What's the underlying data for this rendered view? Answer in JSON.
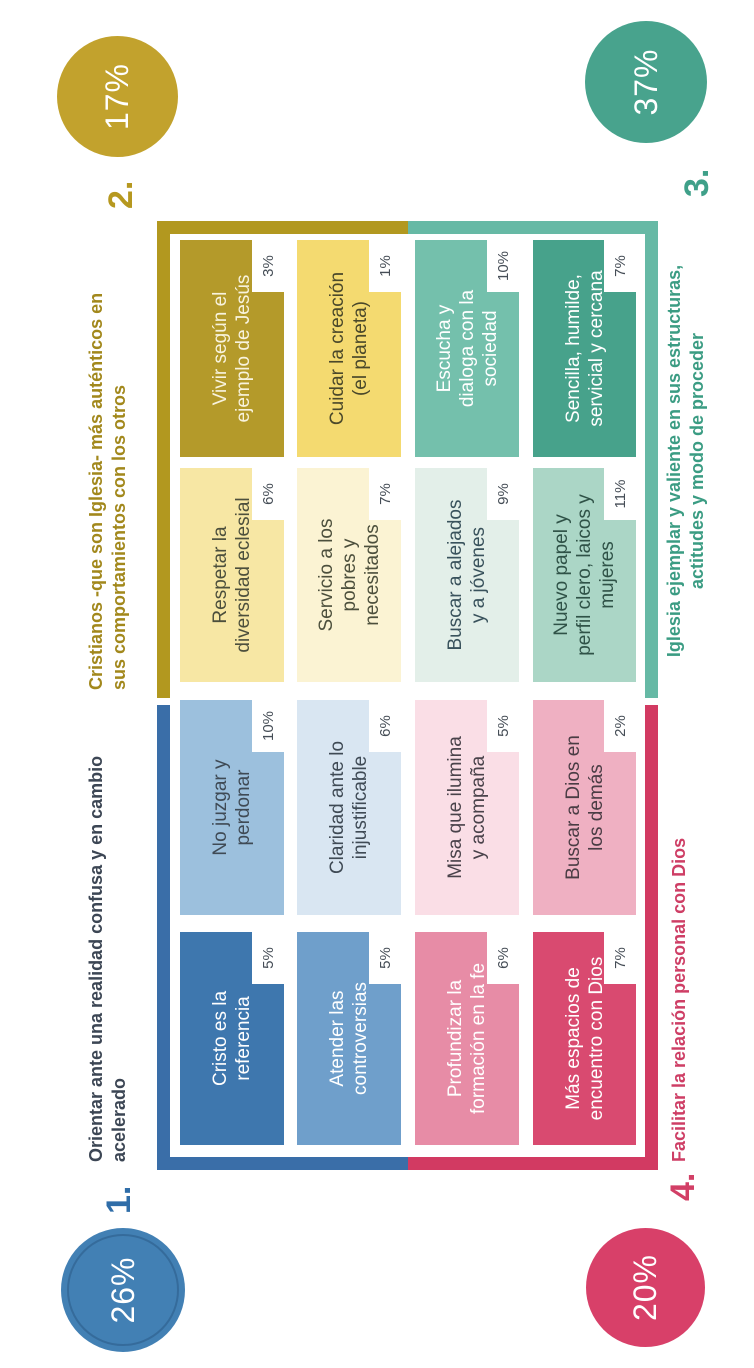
{
  "quadrants": [
    {
      "number": "1.",
      "percent": "26%",
      "title": "Orientar ante una realidad confusa y en cambio\nacelerado",
      "accent": "#2f6da8",
      "circle_color": "#4280b4",
      "title_color": "#3c4654"
    },
    {
      "number": "2.",
      "percent": "17%",
      "title": "Cristianos -que son Iglesia- más auténticos en\nsus comportamientos con los otros",
      "accent": "#b6981f",
      "circle_color": "#c2a22d",
      "title_color": "#a2881c"
    },
    {
      "number": "3.",
      "percent": "37%",
      "title": "Iglesia ejemplar y valiente en sus estructuras,\nactitudes y modo de proceder",
      "accent": "#3fa089",
      "circle_color": "#48a38d",
      "title_color": "#3b9c83"
    },
    {
      "number": "4.",
      "percent": "20%",
      "title": "Facilitar la relación personal con Dios",
      "accent": "#d23f66",
      "circle_color": "#d84069",
      "title_color": "#ce3e65"
    }
  ],
  "brackets": {
    "blue": "#3a6ea8",
    "crimson": "#d23a62",
    "gold": "#b2981f",
    "teal": "#66b9a5"
  },
  "notch": {
    "bg": "#ffffff",
    "fg": "#454d56"
  },
  "boxes": [
    {
      "row": 0,
      "col": 0,
      "label": "Cristo es la\nreferencia",
      "value": "5%",
      "bg": "#3e77ae",
      "fg": "#ffffff"
    },
    {
      "row": 0,
      "col": 1,
      "label": "No juzgar y\nperdonar",
      "value": "10%",
      "bg": "#9cc0dd",
      "fg": "#3f4a55"
    },
    {
      "row": 0,
      "col": 2,
      "label": "Respetar la\ndiversidad eclesial",
      "value": "6%",
      "bg": "#f7e7a4",
      "fg": "#4c4f3c"
    },
    {
      "row": 0,
      "col": 3,
      "label": "Vivir según el\nejemplo de Jesús",
      "value": "3%",
      "bg": "#b49a2a",
      "fg": "#f8f3dd"
    },
    {
      "row": 1,
      "col": 0,
      "label": "Atender las\ncontroversias",
      "value": "5%",
      "bg": "#6f9fcb",
      "fg": "#ffffff"
    },
    {
      "row": 1,
      "col": 1,
      "label": "Claridad ante lo\ninjustificable",
      "value": "6%",
      "bg": "#d9e6f2",
      "fg": "#3f4a55"
    },
    {
      "row": 1,
      "col": 2,
      "label": "Servicio a los\npobres y\nnecesitados",
      "value": "7%",
      "bg": "#fbf3d3",
      "fg": "#4c4f3c"
    },
    {
      "row": 1,
      "col": 3,
      "label": "Cuidar la creación\n(el planeta)",
      "value": "1%",
      "bg": "#f4da70",
      "fg": "#4a482a"
    },
    {
      "row": 2,
      "col": 0,
      "label": "Profundizar la\nformación en la fe",
      "value": "6%",
      "bg": "#e78ca6",
      "fg": "#ffffff"
    },
    {
      "row": 2,
      "col": 1,
      "label": "Misa que ilumina\ny acompaña",
      "value": "5%",
      "bg": "#fadee6",
      "fg": "#49424a"
    },
    {
      "row": 2,
      "col": 2,
      "label": "Buscar a alejados\ny a jóvenes",
      "value": "9%",
      "bg": "#e3efe9",
      "fg": "#39525c"
    },
    {
      "row": 2,
      "col": 3,
      "label": "Escucha y\ndialoga con la\nsociedad",
      "value": "10%",
      "bg": "#74c0ac",
      "fg": "#ffffff"
    },
    {
      "row": 3,
      "col": 0,
      "label": "Más espacios de\nencuentro con Dios",
      "value": "7%",
      "bg": "#d94a70",
      "fg": "#ffffff"
    },
    {
      "row": 3,
      "col": 1,
      "label": "Buscar a Dios en\nlos demás",
      "value": "2%",
      "bg": "#efb0c2",
      "fg": "#4a3c44"
    },
    {
      "row": 3,
      "col": 2,
      "label": "Nuevo papel y\nperfil clero, laicos y\nmujeres",
      "value": "11%",
      "bg": "#abd6c6",
      "fg": "#2f5247"
    },
    {
      "row": 3,
      "col": 3,
      "label": "Sencilla, humilde,\nservicial y cercana",
      "value": "7%",
      "bg": "#47a28b",
      "fg": "#ffffff"
    }
  ],
  "chart_data": {
    "type": "table",
    "groups": [
      {
        "number": "1.",
        "label": "Orientar ante una realidad confusa y en cambio acelerado",
        "total_pct": 26,
        "items": [
          {
            "label": "Cristo es la referencia",
            "pct": 5
          },
          {
            "label": "No juzgar y perdonar",
            "pct": 10
          },
          {
            "label": "Atender las controversias",
            "pct": 5
          },
          {
            "label": "Claridad ante lo injustificable",
            "pct": 6
          }
        ]
      },
      {
        "number": "2.",
        "label": "Cristianos -que son Iglesia- más auténticos en sus comportamientos con los otros",
        "total_pct": 17,
        "items": [
          {
            "label": "Respetar la diversidad eclesial",
            "pct": 6
          },
          {
            "label": "Vivir según el ejemplo de Jesús",
            "pct": 3
          },
          {
            "label": "Servicio a los pobres y necesitados",
            "pct": 7
          },
          {
            "label": "Cuidar la creación (el planeta)",
            "pct": 1
          }
        ]
      },
      {
        "number": "3.",
        "label": "Iglesia ejemplar y valiente en sus estructuras, actitudes y modo de proceder",
        "total_pct": 37,
        "items": [
          {
            "label": "Buscar a alejados y a jóvenes",
            "pct": 9
          },
          {
            "label": "Escucha y dialoga con la sociedad",
            "pct": 10
          },
          {
            "label": "Nuevo papel y perfil clero, laicos y mujeres",
            "pct": 11
          },
          {
            "label": "Sencilla, humilde, servicial y cercana",
            "pct": 7
          }
        ]
      },
      {
        "number": "4.",
        "label": "Facilitar la relación personal con Dios",
        "total_pct": 20,
        "items": [
          {
            "label": "Profundizar la formación en la fe",
            "pct": 6
          },
          {
            "label": "Misa que ilumina y acompaña",
            "pct": 5
          },
          {
            "label": "Más espacios de encuentro con Dios",
            "pct": 7
          },
          {
            "label": "Buscar a Dios en los demás",
            "pct": 2
          }
        ]
      }
    ]
  }
}
